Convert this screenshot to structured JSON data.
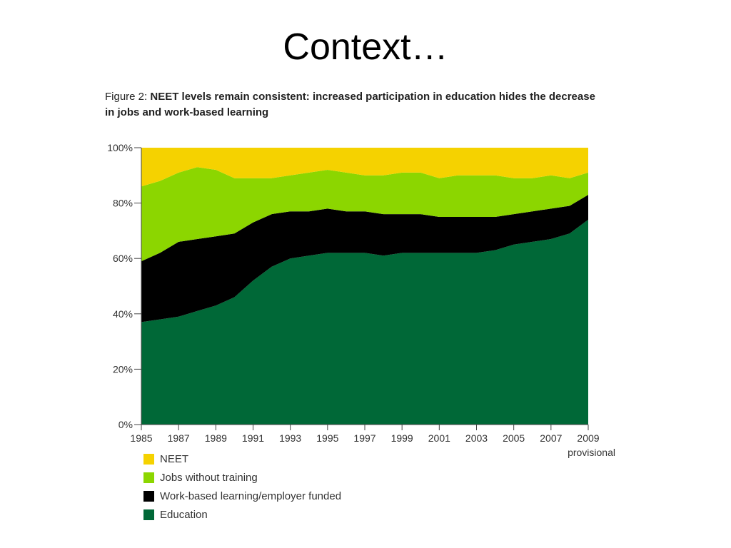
{
  "slide": {
    "title": "Context…"
  },
  "figure": {
    "label": "Figure 2: ",
    "caption": "NEET levels remain consistent: increased participation in education hides the decrease in jobs and work-based learning"
  },
  "chart_data": {
    "type": "area",
    "stacked": true,
    "x": [
      1985,
      1986,
      1987,
      1988,
      1989,
      1990,
      1991,
      1992,
      1993,
      1994,
      1995,
      1996,
      1997,
      1998,
      1999,
      2000,
      2001,
      2002,
      2003,
      2004,
      2005,
      2006,
      2007,
      2008,
      2009
    ],
    "xticks": [
      1985,
      1987,
      1989,
      1991,
      1993,
      1995,
      1997,
      1999,
      2001,
      2003,
      2005,
      2007,
      2009
    ],
    "xtick_labels": [
      "1985",
      "1987",
      "1989",
      "1991",
      "1993",
      "1995",
      "1997",
      "1999",
      "2001",
      "2003",
      "2005",
      "2007",
      "2009"
    ],
    "xtick_note": "provisional",
    "ylim": [
      0,
      100
    ],
    "yticks": [
      0,
      20,
      40,
      60,
      80,
      100
    ],
    "ytick_labels": [
      "0%",
      "20%",
      "40%",
      "60%",
      "80%",
      "100%"
    ],
    "grid": false,
    "legend_position": "bottom-left",
    "series": [
      {
        "name": "Education",
        "color": "#006837",
        "values": [
          37,
          38,
          39,
          41,
          43,
          46,
          52,
          57,
          60,
          61,
          62,
          62,
          62,
          61,
          62,
          62,
          62,
          62,
          62,
          63,
          65,
          66,
          67,
          69,
          74
        ]
      },
      {
        "name": "Work-based learning/employer funded",
        "color": "#000000",
        "values": [
          22,
          24,
          27,
          26,
          25,
          23,
          21,
          19,
          17,
          16,
          16,
          15,
          15,
          15,
          14,
          14,
          13,
          13,
          13,
          12,
          11,
          11,
          11,
          10,
          9
        ]
      },
      {
        "name": "Jobs without training",
        "color": "#8cd600",
        "values": [
          27,
          26,
          25,
          26,
          24,
          20,
          16,
          13,
          13,
          14,
          14,
          14,
          13,
          14,
          15,
          15,
          14,
          15,
          15,
          15,
          13,
          12,
          12,
          10,
          8
        ]
      },
      {
        "name": "NEET",
        "color": "#f5d200",
        "values": [
          14,
          12,
          9,
          7,
          8,
          11,
          11,
          11,
          10,
          9,
          8,
          9,
          10,
          10,
          9,
          9,
          11,
          10,
          10,
          10,
          11,
          11,
          10,
          11,
          9
        ]
      }
    ],
    "legend_order": [
      "NEET",
      "Jobs without training",
      "Work-based learning/employer funded",
      "Education"
    ]
  }
}
